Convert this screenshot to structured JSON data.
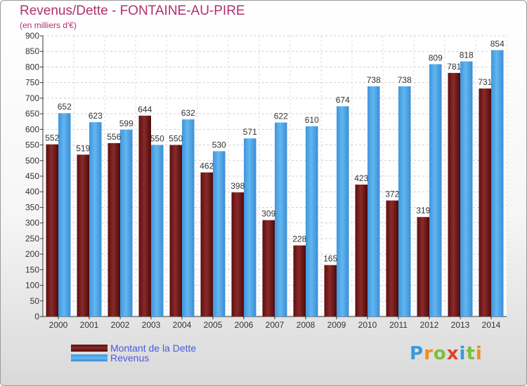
{
  "header": {
    "title": "Revenus/Dette - FONTAINE-AU-PIRE",
    "subtitle": "(en milliers d'€)"
  },
  "chart_data": {
    "type": "bar",
    "categories": [
      "2000",
      "2001",
      "2002",
      "2003",
      "2004",
      "2005",
      "2006",
      "2007",
      "2008",
      "2009",
      "2010",
      "2011",
      "2012",
      "2013",
      "2014"
    ],
    "series": [
      {
        "name": "Montant de la Dette",
        "color": "#7a1b1b",
        "values": [
          552,
          519,
          556,
          644,
          550,
          462,
          398,
          309,
          228,
          165,
          423,
          372,
          319,
          781,
          731
        ]
      },
      {
        "name": "Revenus",
        "color": "#4aa3e6",
        "values": [
          652,
          623,
          599,
          550,
          632,
          530,
          571,
          622,
          610,
          674,
          738,
          738,
          809,
          818,
          854
        ]
      }
    ],
    "xlabel": "",
    "ylabel": "",
    "ylim": [
      0,
      900
    ],
    "yticks": [
      0,
      50,
      100,
      150,
      200,
      250,
      300,
      350,
      400,
      450,
      500,
      550,
      600,
      650,
      700,
      750,
      800,
      850,
      900
    ],
    "grid": true,
    "legend": "bottom-left"
  },
  "legend": {
    "items": [
      {
        "label": "Montant de la Dette",
        "color": "#7a1b1b"
      },
      {
        "label": "Revenus",
        "color": "#4aa3e6"
      }
    ]
  },
  "logo": {
    "letters": [
      "P",
      "r",
      "o",
      "x",
      "i",
      "t",
      "i"
    ],
    "colors": [
      "#3a9ad9",
      "#f08c1e",
      "#7cbf3a",
      "#e0402a",
      "#3a9ad9",
      "#7cbf3a",
      "#f08c1e"
    ]
  }
}
